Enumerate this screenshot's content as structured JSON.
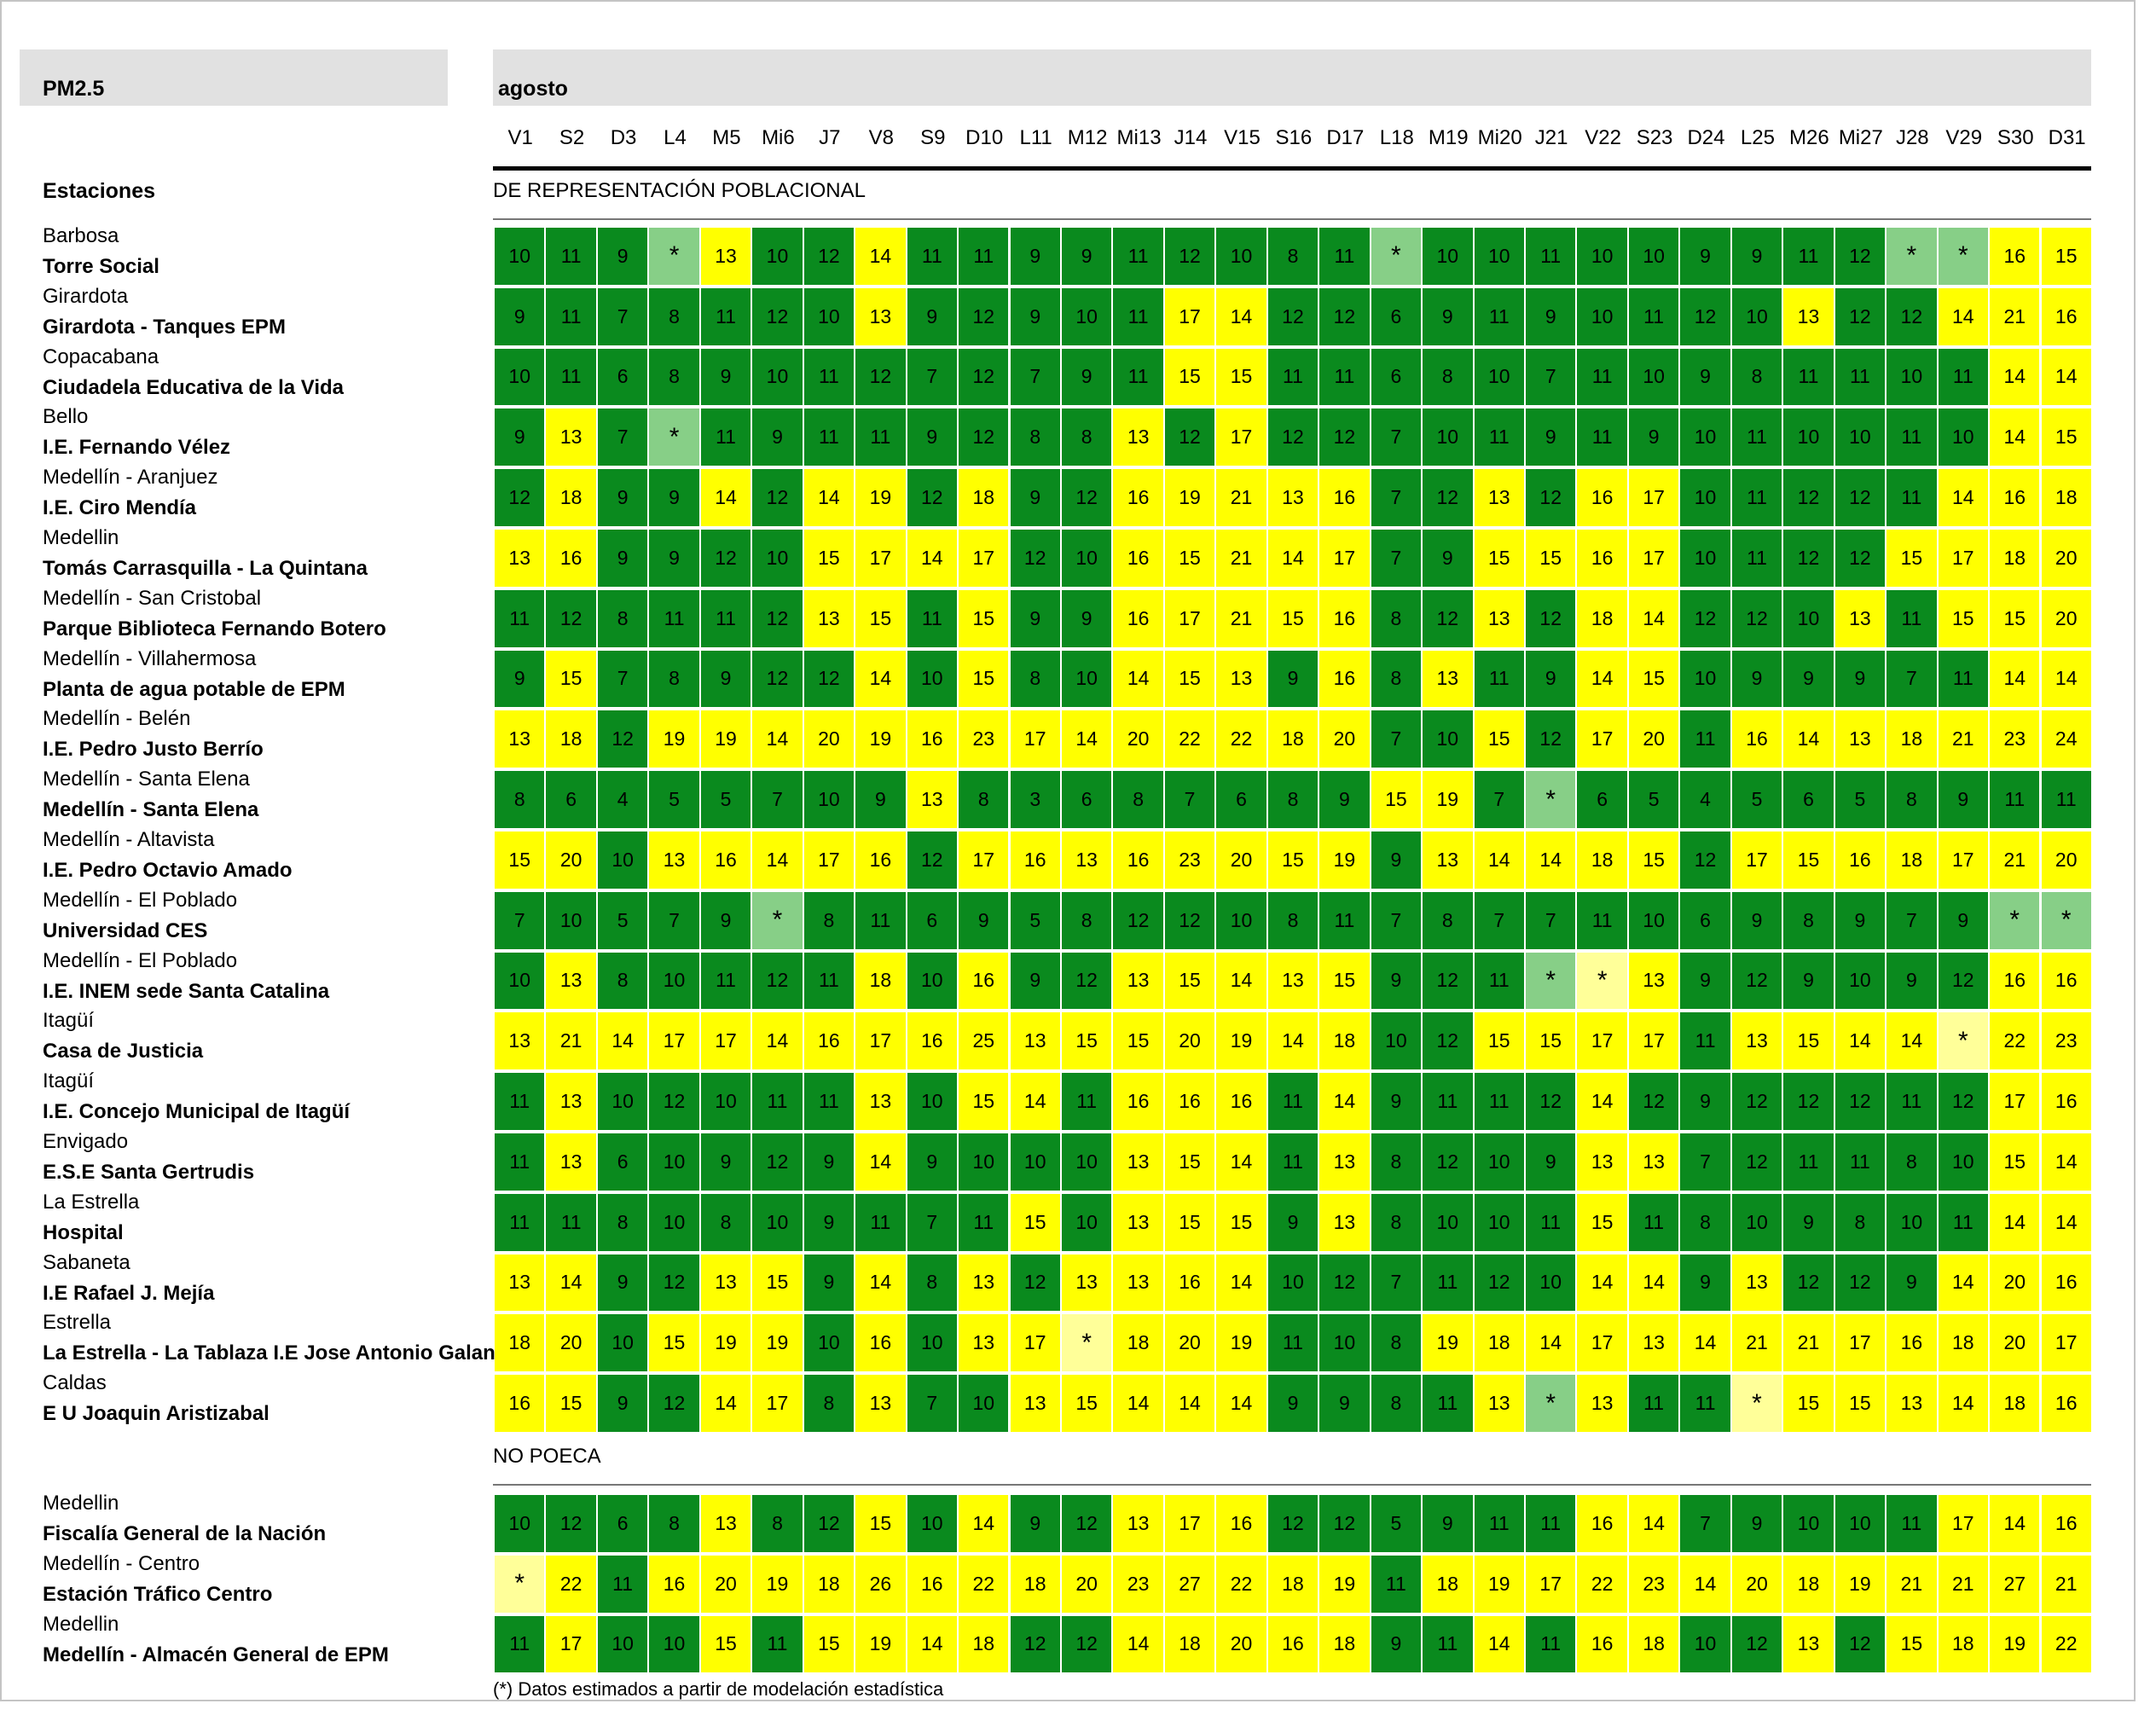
{
  "chart_data": {
    "type": "heatmap",
    "title": "PM2.5",
    "month": "agosto",
    "row_header": "Estaciones",
    "days": [
      "V1",
      "S2",
      "D3",
      "L4",
      "M5",
      "Mi6",
      "J7",
      "V8",
      "S9",
      "D10",
      "L11",
      "M12",
      "Mi13",
      "J14",
      "V15",
      "S16",
      "D17",
      "L18",
      "M19",
      "Mi20",
      "J21",
      "V22",
      "S23",
      "D24",
      "L25",
      "M26",
      "Mi27",
      "J28",
      "V29",
      "S30",
      "D31"
    ],
    "legend": {
      "green_max": 12,
      "colors": {
        "green": "#0a8a1e",
        "yellow": "#ffff00",
        "estimated_green": "#87cf87",
        "estimated_yellow": "#ffff99"
      }
    },
    "sections": [
      {
        "label": "DE REPRESENTACIÓN POBLACIONAL",
        "stations": [
          {
            "municipality": "Barbosa",
            "name": "Torre Social",
            "values": [
              "10",
              "11",
              "9",
              "*g",
              "13",
              "10",
              "12",
              "14",
              "11",
              "11",
              "9",
              "9",
              "11",
              "12",
              "10",
              "8",
              "11",
              "*g",
              "10",
              "10",
              "11",
              "10",
              "10",
              "9",
              "9",
              "11",
              "12",
              "*g",
              "*g",
              "16",
              "15"
            ]
          },
          {
            "municipality": "Girardota",
            "name": "Girardota - Tanques EPM",
            "values": [
              "9",
              "11",
              "7",
              "8",
              "11",
              "12",
              "10",
              "13",
              "9",
              "12",
              "9",
              "10",
              "11",
              "17",
              "14",
              "12",
              "12",
              "6",
              "9",
              "11",
              "9",
              "10",
              "11",
              "12",
              "10",
              "13",
              "12",
              "12",
              "14",
              "21",
              "16"
            ]
          },
          {
            "municipality": "Copacabana",
            "name": "Ciudadela Educativa de la Vida",
            "values": [
              "10",
              "11",
              "6",
              "8",
              "9",
              "10",
              "11",
              "12",
              "7",
              "12",
              "7",
              "9",
              "11",
              "15",
              "15",
              "11",
              "11",
              "6",
              "8",
              "10",
              "7",
              "11",
              "10",
              "9",
              "8",
              "11",
              "11",
              "10",
              "11",
              "14",
              "14"
            ]
          },
          {
            "municipality": "Bello",
            "name": "I.E. Fernando Vélez",
            "values": [
              "9",
              "13",
              "7",
              "*g",
              "11",
              "9",
              "11",
              "11",
              "9",
              "12",
              "8",
              "8",
              "13",
              "12",
              "17",
              "12",
              "12",
              "7",
              "10",
              "11",
              "9",
              "11",
              "9",
              "10",
              "11",
              "10",
              "10",
              "11",
              "10",
              "14",
              "15"
            ]
          },
          {
            "municipality": "Medellín - Aranjuez",
            "name": "I.E. Ciro Mendía",
            "values": [
              "12",
              "18",
              "9",
              "9",
              "14",
              "12",
              "14",
              "19",
              "12",
              "18",
              "9",
              "12",
              "16",
              "19",
              "21",
              "13",
              "16",
              "7",
              "12",
              "13",
              "12",
              "16",
              "17",
              "10",
              "11",
              "12",
              "12",
              "11",
              "14",
              "16",
              "18"
            ]
          },
          {
            "municipality": "Medellin",
            "name": "Tomás Carrasquilla - La Quintana",
            "values": [
              "13",
              "16",
              "9",
              "9",
              "12",
              "10",
              "15",
              "17",
              "14",
              "17",
              "12",
              "10",
              "16",
              "15",
              "21",
              "14",
              "17",
              "7",
              "9",
              "15",
              "15",
              "16",
              "17",
              "10",
              "11",
              "12",
              "12",
              "15",
              "17",
              "18",
              "20"
            ]
          },
          {
            "municipality": "Medellín - San Cristobal",
            "name": "Parque Biblioteca Fernando Botero",
            "values": [
              "11",
              "12",
              "8",
              "11",
              "11",
              "12",
              "13",
              "15",
              "11",
              "15",
              "9",
              "9",
              "16",
              "17",
              "21",
              "15",
              "16",
              "8",
              "12",
              "13",
              "12",
              "18",
              "14",
              "12",
              "12",
              "10",
              "13",
              "11",
              "15",
              "15",
              "20"
            ]
          },
          {
            "municipality": "Medellín - Villahermosa",
            "name": "Planta de agua potable de EPM",
            "values": [
              "9",
              "15",
              "7",
              "8",
              "9",
              "12",
              "12",
              "14",
              "10",
              "15",
              "8",
              "10",
              "14",
              "15",
              "13",
              "9",
              "16",
              "8",
              "13",
              "11",
              "9",
              "14",
              "15",
              "10",
              "9",
              "9",
              "9",
              "7",
              "11",
              "14",
              "14"
            ]
          },
          {
            "municipality": "Medellín - Belén",
            "name": "I.E. Pedro Justo Berrío",
            "values": [
              "13",
              "18",
              "12",
              "19",
              "19",
              "14",
              "20",
              "19",
              "16",
              "23",
              "17",
              "14",
              "20",
              "22",
              "22",
              "18",
              "20",
              "7",
              "10",
              "15",
              "12",
              "17",
              "20",
              "11",
              "16",
              "14",
              "13",
              "18",
              "21",
              "23",
              "24"
            ]
          },
          {
            "municipality": "Medellín - Santa Elena",
            "name": "Medellín - Santa Elena",
            "values": [
              "8",
              "6",
              "4",
              "5",
              "5",
              "7",
              "10",
              "9",
              "13",
              "8",
              "3",
              "6",
              "8",
              "7",
              "6",
              "8",
              "9",
              "15",
              "19",
              "7",
              "*g",
              "6",
              "5",
              "4",
              "5",
              "6",
              "5",
              "8",
              "9",
              "11",
              "11"
            ]
          },
          {
            "municipality": "Medellín - Altavista",
            "name": "I.E. Pedro Octavio Amado",
            "values": [
              "15",
              "20",
              "10",
              "13",
              "16",
              "14",
              "17",
              "16",
              "12",
              "17",
              "16",
              "13",
              "16",
              "23",
              "20",
              "15",
              "19",
              "9",
              "13",
              "14",
              "14",
              "18",
              "15",
              "12",
              "17",
              "15",
              "16",
              "18",
              "17",
              "21",
              "20"
            ]
          },
          {
            "municipality": "Medellín - El Poblado",
            "name": "Universidad CES",
            "values": [
              "7",
              "10",
              "5",
              "7",
              "9",
              "*g",
              "8",
              "11",
              "6",
              "9",
              "5",
              "8",
              "12",
              "12",
              "10",
              "8",
              "11",
              "7",
              "8",
              "7",
              "7",
              "11",
              "10",
              "6",
              "9",
              "8",
              "9",
              "7",
              "9",
              "*g",
              "*g"
            ]
          },
          {
            "municipality": "Medellín - El Poblado",
            "name": "I.E. INEM sede Santa Catalina",
            "values": [
              "10",
              "13",
              "8",
              "10",
              "11",
              "12",
              "11",
              "18",
              "10",
              "16",
              "9",
              "12",
              "13",
              "15",
              "14",
              "13",
              "15",
              "9",
              "12",
              "11",
              "*g",
              "*y",
              "13",
              "9",
              "12",
              "9",
              "10",
              "9",
              "12",
              "16",
              "16"
            ]
          },
          {
            "municipality": "Itagüí",
            "name": "Casa de Justicia",
            "values": [
              "13",
              "21",
              "14",
              "17",
              "17",
              "14",
              "16",
              "17",
              "16",
              "25",
              "13",
              "15",
              "15",
              "20",
              "19",
              "14",
              "18",
              "10",
              "12",
              "15",
              "15",
              "17",
              "17",
              "11",
              "13",
              "15",
              "14",
              "14",
              "*y",
              "22",
              "23"
            ]
          },
          {
            "municipality": "Itagüí",
            "name": "I.E. Concejo Municipal de Itagüí",
            "values": [
              "11",
              "13",
              "10",
              "12",
              "10",
              "11",
              "11",
              "13",
              "10",
              "15",
              "14",
              "11",
              "16",
              "16",
              "16",
              "11",
              "14",
              "9",
              "11",
              "11",
              "12",
              "14",
              "12",
              "9",
              "12",
              "12",
              "12",
              "11",
              "12",
              "17",
              "16"
            ]
          },
          {
            "municipality": "Envigado",
            "name": "E.S.E Santa Gertrudis",
            "values": [
              "11",
              "13",
              "6",
              "10",
              "9",
              "12",
              "9",
              "14",
              "9",
              "10",
              "10",
              "10",
              "13",
              "15",
              "14",
              "11",
              "13",
              "8",
              "12",
              "10",
              "9",
              "13",
              "13",
              "7",
              "12",
              "11",
              "11",
              "8",
              "10",
              "15",
              "14"
            ]
          },
          {
            "municipality": "La Estrella",
            "name": "Hospital",
            "values": [
              "11",
              "11",
              "8",
              "10",
              "8",
              "10",
              "9",
              "11",
              "7",
              "11",
              "15",
              "10",
              "13",
              "15",
              "15",
              "9",
              "13",
              "8",
              "10",
              "10",
              "11",
              "15",
              "11",
              "8",
              "10",
              "9",
              "8",
              "10",
              "11",
              "14",
              "14"
            ]
          },
          {
            "municipality": "Sabaneta",
            "name": "I.E Rafael J. Mejía",
            "values": [
              "13",
              "14",
              "9",
              "12",
              "13",
              "15",
              "9",
              "14",
              "8",
              "13",
              "12",
              "13",
              "13",
              "16",
              "14",
              "10",
              "12",
              "7",
              "11",
              "12",
              "10",
              "14",
              "14",
              "9",
              "13",
              "12",
              "12",
              "9",
              "14",
              "20",
              "16"
            ]
          },
          {
            "municipality": "Estrella",
            "name": "La Estrella - La Tablaza I.E Jose Antonio Galan",
            "values": [
              "18",
              "20",
              "10",
              "15",
              "19",
              "19",
              "10",
              "16",
              "10",
              "13",
              "17",
              "*y",
              "18",
              "20",
              "19",
              "11",
              "10",
              "8",
              "19",
              "18",
              "14",
              "17",
              "13",
              "14",
              "21",
              "21",
              "17",
              "16",
              "18",
              "20",
              "17"
            ]
          },
          {
            "municipality": "Caldas",
            "name": "E U Joaquin Aristizabal",
            "values": [
              "16",
              "15",
              "9",
              "12",
              "14",
              "17",
              "8",
              "13",
              "7",
              "10",
              "13",
              "15",
              "14",
              "14",
              "14",
              "9",
              "9",
              "8",
              "11",
              "13",
              "*g",
              "13",
              "11",
              "11",
              "*y",
              "15",
              "15",
              "13",
              "14",
              "18",
              "16"
            ]
          }
        ]
      },
      {
        "label": "NO POECA",
        "stations": [
          {
            "municipality": "Medellin",
            "name": "Fiscalía General de la Nación",
            "values": [
              "10",
              "12",
              "6",
              "8",
              "13",
              "8",
              "12",
              "15",
              "10",
              "14",
              "9",
              "12",
              "13",
              "17",
              "16",
              "12",
              "12",
              "5",
              "9",
              "11",
              "11",
              "16",
              "14",
              "7",
              "9",
              "10",
              "10",
              "11",
              "17",
              "14",
              "16"
            ]
          },
          {
            "municipality": "Medellín - Centro",
            "name": "Estación Tráfico Centro",
            "values": [
              "*y",
              "22",
              "11",
              "16",
              "20",
              "19",
              "18",
              "26",
              "16",
              "22",
              "18",
              "20",
              "23",
              "27",
              "22",
              "18",
              "19",
              "11",
              "18",
              "19",
              "17",
              "22",
              "23",
              "14",
              "20",
              "18",
              "19",
              "21",
              "21",
              "27",
              "21"
            ]
          },
          {
            "municipality": "Medellin",
            "name": "Medellín - Almacén General de EPM",
            "values": [
              "11",
              "17",
              "10",
              "10",
              "15",
              "11",
              "15",
              "19",
              "14",
              "18",
              "12",
              "12",
              "14",
              "18",
              "20",
              "16",
              "18",
              "9",
              "11",
              "14",
              "11",
              "16",
              "18",
              "10",
              "12",
              "13",
              "12",
              "15",
              "18",
              "19",
              "22"
            ]
          }
        ]
      }
    ],
    "footnote": "(*) Datos estimados a partir de modelación estadística"
  }
}
